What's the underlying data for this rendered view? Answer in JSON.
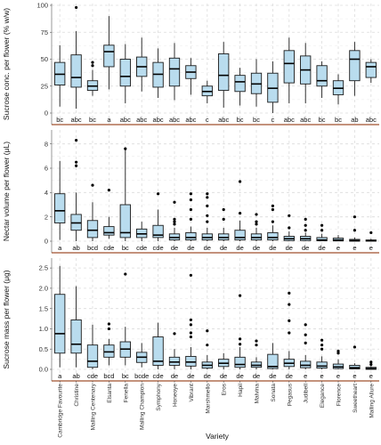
{
  "chart_data": {
    "type": "box",
    "x_title": "Variety",
    "categories": [
      "Cambridge Favourite",
      "Christine",
      "Malling Centenary",
      "Elsanta",
      "Fenella",
      "Malling Champion",
      "Symphony",
      "Honeoye",
      "Vibrant",
      "Marshmello",
      "Eros",
      "Hapil",
      "Malvina",
      "Sonata",
      "Pegasus",
      "Judibell",
      "Elegance",
      "Florence",
      "Sweetheart",
      "Malling Allure"
    ],
    "panels": [
      {
        "ylabel": "Sucrose conc. per flower (% w/w)",
        "ylim": [
          0,
          100
        ],
        "yticks": [
          0,
          25,
          50,
          75,
          100
        ],
        "boxes": [
          {
            "q1": 26,
            "median": 36,
            "q3": 47,
            "low": 6,
            "high": 63,
            "outliers": []
          },
          {
            "q1": 24,
            "median": 33,
            "q3": 54,
            "low": 4,
            "high": 76,
            "outliers": [
              98
            ]
          },
          {
            "q1": 21,
            "median": 25,
            "q3": 30,
            "low": 16,
            "high": 40,
            "outliers": [
              47,
              44
            ]
          },
          {
            "q1": 43,
            "median": 57,
            "q3": 63,
            "low": 22,
            "high": 90,
            "outliers": []
          },
          {
            "q1": 25,
            "median": 34,
            "q3": 50,
            "low": 9,
            "high": 64,
            "outliers": []
          },
          {
            "q1": 34,
            "median": 43,
            "q3": 52,
            "low": 20,
            "high": 70,
            "outliers": []
          },
          {
            "q1": 24,
            "median": 36,
            "q3": 47,
            "low": 14,
            "high": 60,
            "outliers": []
          },
          {
            "q1": 25,
            "median": 41,
            "q3": 51,
            "low": 12,
            "high": 65,
            "outliers": []
          },
          {
            "q1": 32,
            "median": 38,
            "q3": 44,
            "low": 17,
            "high": 51,
            "outliers": []
          },
          {
            "q1": 16,
            "median": 20,
            "q3": 25,
            "low": 9,
            "high": 30,
            "outliers": []
          },
          {
            "q1": 21,
            "median": 35,
            "q3": 55,
            "low": 5,
            "high": 66,
            "outliers": []
          },
          {
            "q1": 20,
            "median": 29,
            "q3": 35,
            "low": 7,
            "high": 42,
            "outliers": []
          },
          {
            "q1": 18,
            "median": 27,
            "q3": 37,
            "low": 6,
            "high": 50,
            "outliers": []
          },
          {
            "q1": 10,
            "median": 23,
            "q3": 37,
            "low": 0,
            "high": 48,
            "outliers": []
          },
          {
            "q1": 28,
            "median": 46,
            "q3": 58,
            "low": 9,
            "high": 70,
            "outliers": []
          },
          {
            "q1": 27,
            "median": 40,
            "q3": 53,
            "low": 9,
            "high": 65,
            "outliers": []
          },
          {
            "q1": 25,
            "median": 30,
            "q3": 44,
            "low": 14,
            "high": 48,
            "outliers": []
          },
          {
            "q1": 17,
            "median": 23,
            "q3": 30,
            "low": 8,
            "high": 36,
            "outliers": []
          },
          {
            "q1": 30,
            "median": 50,
            "q3": 58,
            "low": 16,
            "high": 66,
            "outliers": []
          },
          {
            "q1": 33,
            "median": 43,
            "q3": 47,
            "low": 28,
            "high": 50,
            "outliers": []
          }
        ],
        "letters": [
          "bc",
          "abc",
          "bc",
          "a",
          "abc",
          "abc",
          "abc",
          "abc",
          "abc",
          "c",
          "abc",
          "bc",
          "bc",
          "c",
          "abc",
          "abc",
          "bc",
          "bc",
          "ab",
          "abc"
        ]
      },
      {
        "ylabel": "Nectar volume per flower (μL)",
        "ylim": [
          0,
          9
        ],
        "yticks": [
          0,
          2,
          4,
          6,
          8
        ],
        "boxes": [
          {
            "q1": 1.5,
            "median": 2.5,
            "q3": 3.9,
            "low": 0.1,
            "high": 6.6,
            "outliers": []
          },
          {
            "q1": 0.9,
            "median": 1.5,
            "q3": 2.2,
            "low": 0.0,
            "high": 4.0,
            "outliers": [
              8.3,
              6.5,
              6.2
            ]
          },
          {
            "q1": 0.3,
            "median": 0.9,
            "q3": 1.7,
            "low": 0.0,
            "high": 3.2,
            "outliers": [
              4.6
            ]
          },
          {
            "q1": 0.5,
            "median": 0.7,
            "q3": 1.2,
            "low": 0.2,
            "high": 2.0,
            "outliers": [
              4.2
            ]
          },
          {
            "q1": 0.3,
            "median": 0.7,
            "q3": 3.0,
            "low": 0.0,
            "high": 7.5,
            "outliers": [
              7.6
            ]
          },
          {
            "q1": 0.3,
            "median": 0.6,
            "q3": 1.0,
            "low": 0.0,
            "high": 1.6,
            "outliers": []
          },
          {
            "q1": 0.3,
            "median": 0.5,
            "q3": 1.3,
            "low": 0.0,
            "high": 2.6,
            "outliers": [
              3.9
            ]
          },
          {
            "q1": 0.1,
            "median": 0.3,
            "q3": 0.6,
            "low": 0.0,
            "high": 1.1,
            "outliers": [
              3.2,
              1.8,
              1.6,
              1.4
            ]
          },
          {
            "q1": 0.1,
            "median": 0.3,
            "q3": 0.7,
            "low": 0.0,
            "high": 1.2,
            "outliers": [
              3.9,
              3.4,
              2.6,
              1.8
            ]
          },
          {
            "q1": 0.1,
            "median": 0.3,
            "q3": 0.6,
            "low": 0.0,
            "high": 1.1,
            "outliers": [
              3.9,
              3.6,
              2.9,
              2.1,
              1.6
            ]
          },
          {
            "q1": 0.1,
            "median": 0.3,
            "q3": 0.6,
            "low": 0.0,
            "high": 1.1,
            "outliers": [
              2.6,
              1.8
            ]
          },
          {
            "q1": 0.1,
            "median": 0.3,
            "q3": 0.9,
            "low": 0.0,
            "high": 1.7,
            "outliers": [
              4.9,
              2.3
            ]
          },
          {
            "q1": 0.1,
            "median": 0.3,
            "q3": 0.6,
            "low": 0.0,
            "high": 1.1,
            "outliers": [
              2.2,
              1.6,
              1.4
            ]
          },
          {
            "q1": 0.1,
            "median": 0.3,
            "q3": 0.7,
            "low": 0.0,
            "high": 1.3,
            "outliers": [
              2.9,
              2.6,
              1.6
            ]
          },
          {
            "q1": 0.05,
            "median": 0.2,
            "q3": 0.4,
            "low": 0.0,
            "high": 0.8,
            "outliers": [
              2.1,
              1.1
            ]
          },
          {
            "q1": 0.05,
            "median": 0.2,
            "q3": 0.4,
            "low": 0.0,
            "high": 0.7,
            "outliers": [
              1.8,
              1.3,
              0.9
            ]
          },
          {
            "q1": 0.03,
            "median": 0.1,
            "q3": 0.3,
            "low": 0.0,
            "high": 0.6,
            "outliers": [
              1.3,
              0.9
            ]
          },
          {
            "q1": 0.02,
            "median": 0.1,
            "q3": 0.25,
            "low": 0.0,
            "high": 0.5,
            "outliers": []
          },
          {
            "q1": 0.0,
            "median": 0.05,
            "q3": 0.15,
            "low": 0.0,
            "high": 0.3,
            "outliers": [
              2.0,
              0.9
            ]
          },
          {
            "q1": 0.0,
            "median": 0.05,
            "q3": 0.1,
            "low": 0.0,
            "high": 0.2,
            "outliers": [
              0.7
            ]
          }
        ],
        "letters": [
          "a",
          "ab",
          "bcd",
          "cde",
          "bc",
          "cde",
          "cde",
          "de",
          "de",
          "de",
          "de",
          "de",
          "de",
          "de",
          "de",
          "de",
          "de",
          "e",
          "e",
          "e"
        ]
      },
      {
        "ylabel": "Sucrose mass per flower (μg)",
        "ylim": [
          0,
          2.7
        ],
        "yticks": [
          0.0,
          0.5,
          1.0,
          1.5,
          2.0,
          2.5
        ],
        "boxes": [
          {
            "q1": 0.4,
            "median": 0.88,
            "q3": 1.85,
            "low": 0.05,
            "high": 2.55,
            "outliers": []
          },
          {
            "q1": 0.4,
            "median": 0.62,
            "q3": 1.22,
            "low": 0.05,
            "high": 2.05,
            "outliers": []
          },
          {
            "q1": 0.05,
            "median": 0.2,
            "q3": 0.6,
            "low": 0.0,
            "high": 1.1,
            "outliers": []
          },
          {
            "q1": 0.3,
            "median": 0.43,
            "q3": 0.6,
            "low": 0.1,
            "high": 0.75,
            "outliers": [
              1.12,
              1.0
            ]
          },
          {
            "q1": 0.3,
            "median": 0.5,
            "q3": 0.68,
            "low": 0.1,
            "high": 1.05,
            "outliers": [
              2.35
            ]
          },
          {
            "q1": 0.17,
            "median": 0.3,
            "q3": 0.42,
            "low": 0.05,
            "high": 0.65,
            "outliers": []
          },
          {
            "q1": 0.1,
            "median": 0.2,
            "q3": 0.8,
            "low": 0.0,
            "high": 1.15,
            "outliers": []
          },
          {
            "q1": 0.1,
            "median": 0.18,
            "q3": 0.3,
            "low": 0.0,
            "high": 0.5,
            "outliers": [
              0.88
            ]
          },
          {
            "q1": 0.08,
            "median": 0.18,
            "q3": 0.32,
            "low": 0.0,
            "high": 0.55,
            "outliers": [
              2.32,
              1.22,
              1.1,
              0.9,
              0.8
            ]
          },
          {
            "q1": 0.03,
            "median": 0.1,
            "q3": 0.18,
            "low": 0.0,
            "high": 0.35,
            "outliers": [
              0.95,
              0.6
            ]
          },
          {
            "q1": 0.07,
            "median": 0.15,
            "q3": 0.25,
            "low": 0.0,
            "high": 0.4,
            "outliers": []
          },
          {
            "q1": 0.05,
            "median": 0.12,
            "q3": 0.3,
            "low": 0.0,
            "high": 0.55,
            "outliers": [
              1.82,
              0.75,
              0.62
            ]
          },
          {
            "q1": 0.05,
            "median": 0.1,
            "q3": 0.18,
            "low": 0.0,
            "high": 0.3,
            "outliers": [
              0.7,
              0.6
            ]
          },
          {
            "q1": 0.02,
            "median": 0.07,
            "q3": 0.37,
            "low": 0.0,
            "high": 0.65,
            "outliers": []
          },
          {
            "q1": 0.07,
            "median": 0.15,
            "q3": 0.25,
            "low": 0.0,
            "high": 0.45,
            "outliers": [
              1.88,
              1.6,
              1.2,
              0.9
            ]
          },
          {
            "q1": 0.04,
            "median": 0.1,
            "q3": 0.2,
            "low": 0.0,
            "high": 0.35,
            "outliers": [
              1.1,
              0.85,
              0.65
            ]
          },
          {
            "q1": 0.03,
            "median": 0.08,
            "q3": 0.18,
            "low": 0.0,
            "high": 0.32,
            "outliers": [
              0.72,
              0.6,
              0.5
            ]
          },
          {
            "q1": 0.02,
            "median": 0.06,
            "q3": 0.13,
            "low": 0.0,
            "high": 0.25,
            "outliers": [
              0.45,
              0.4
            ]
          },
          {
            "q1": 0.01,
            "median": 0.04,
            "q3": 0.1,
            "low": 0.0,
            "high": 0.15,
            "outliers": [
              0.55
            ]
          },
          {
            "q1": 0.0,
            "median": 0.02,
            "q3": 0.05,
            "low": 0.0,
            "high": 0.08,
            "outliers": [
              0.18,
              0.12
            ]
          }
        ],
        "letters": [
          "a",
          "ab",
          "cde",
          "bcd",
          "bc",
          "bcde",
          "cde",
          "de",
          "de",
          "de",
          "de",
          "de",
          "de",
          "de",
          "de",
          "e",
          "e",
          "e",
          "e",
          "e"
        ]
      }
    ],
    "colors": {
      "box_fill": "#b9dcee",
      "panel_border": "#a0522d"
    },
    "grid": true
  }
}
